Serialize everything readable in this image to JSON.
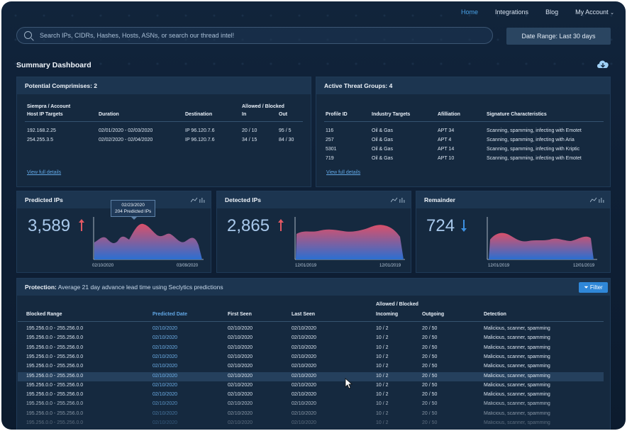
{
  "nav": {
    "home": "Home",
    "integrations": "Integrations",
    "blog": "Blog",
    "account": "My Account"
  },
  "search": {
    "placeholder": "Search IPs, CIDRs, Hashes, Hosts, ASNs, or search our thread intel!"
  },
  "date_range": "Date Range: Last 30 days",
  "page_title": "Summary Dashboard",
  "compromises": {
    "title": "Potential Comprimises: 2",
    "headers": {
      "host_l1": "Siempra / Account",
      "host_l2": "Host IP Targets",
      "duration": "Duration",
      "destination": "Destination",
      "ab": "Allowed / Blocked",
      "in": "In",
      "out": "Out"
    },
    "rows": [
      {
        "host": "192.168.2.25",
        "duration": "02/01/2020 - 02/03/2020",
        "dest": "IP 96.120.7.6",
        "in": "20 / 10",
        "out": "95 / 5"
      },
      {
        "host": "254.255.3.5",
        "duration": "02/02/2020 - 02/04/2020",
        "dest": "IP 96.120.7.6",
        "in": "34 / 15",
        "out": "84 / 30"
      }
    ],
    "link": "View full details"
  },
  "threats": {
    "title": "Active Threat Groups: 4",
    "headers": {
      "profile": "Profile ID",
      "industry": "Industry Targets",
      "affiliation": "Afilliation",
      "signature": "Signature Characteristics"
    },
    "rows": [
      {
        "id": "116",
        "industry": "Oil & Gas",
        "aff": "APT 34",
        "sig": "Scanning, spamming, infecting with Emotet"
      },
      {
        "id": "257",
        "industry": "Oil & Gas",
        "aff": "APT 4",
        "sig": "Scanning, spamming, infecting with Aria"
      },
      {
        "id": "5301",
        "industry": "Oil & Gas",
        "aff": "APT 14",
        "sig": "Scanning, spamming, infecting with Kriptic"
      },
      {
        "id": "719",
        "industry": "Oil & Gas",
        "aff": "APT 10",
        "sig": "Scanning, spamming, infecting with Emotet"
      }
    ],
    "link": "View full details"
  },
  "predicted": {
    "title": "Predicted IPs",
    "value": "3,589",
    "tooltip_date": "02/23/2020",
    "tooltip_text": "204 Predicted IPs",
    "x_start": "02/10/2020",
    "x_end": "03/09/2020"
  },
  "detected": {
    "title": "Detected IPs",
    "value": "2,865",
    "x_start": "12/01/2019",
    "x_end": "12/01/2019"
  },
  "remainder": {
    "title": "Remainder",
    "value": "724",
    "x_start": "12/01/2019",
    "x_end": "12/01/2019"
  },
  "protection": {
    "label": "Protection:",
    "desc": "Average 21 day advance lead time using Seclytics predictions",
    "filter": "Filter",
    "headers": {
      "range": "Blocked Range",
      "pred": "Predicted Date",
      "first": "First Seen",
      "last": "Last Seen",
      "ab": "Allowed  /  Blocked",
      "incoming": "Incoming",
      "outgoing": "Outgoing",
      "detection": "Detection"
    },
    "rows": [
      {
        "range": "195.256.0.0 - 255.256.0.0",
        "pred": "02/10/2020",
        "first": "02/10/2020",
        "last": "02/10/2020",
        "in": "10 / 2",
        "out": "20 / 50",
        "det": "Malicious, scanner, spamming"
      },
      {
        "range": "195.256.0.0 - 255.256.0.0",
        "pred": "02/10/2020",
        "first": "02/10/2020",
        "last": "02/10/2020",
        "in": "10 / 2",
        "out": "20 / 50",
        "det": "Malicious, scanner, spamming"
      },
      {
        "range": "195.256.0.0 - 255.256.0.0",
        "pred": "02/10/2020",
        "first": "02/10/2020",
        "last": "02/10/2020",
        "in": "10 / 2",
        "out": "20 / 50",
        "det": "Malicious, scanner, spamming"
      },
      {
        "range": "195.256.0.0 - 255.256.0.0",
        "pred": "02/10/2020",
        "first": "02/10/2020",
        "last": "02/10/2020",
        "in": "10 / 2",
        "out": "20 / 50",
        "det": "Malicious, scanner, spamming"
      },
      {
        "range": "195.256.0.0 - 255.256.0.0",
        "pred": "02/10/2020",
        "first": "02/10/2020",
        "last": "02/10/2020",
        "in": "10 / 2",
        "out": "20 / 50",
        "det": "Malicious, scanner, spamming"
      },
      {
        "range": "195.256.0.0 - 255.256.0.0",
        "pred": "02/10/2020",
        "first": "02/10/2020",
        "last": "02/10/2020",
        "in": "10 / 2",
        "out": "20 / 50",
        "det": "Malicious, scanner, spamming"
      },
      {
        "range": "195.256.0.0 - 255.256.0.0",
        "pred": "02/10/2020",
        "first": "02/10/2020",
        "last": "02/10/2020",
        "in": "10 / 2",
        "out": "20 / 50",
        "det": "Malicious, scanner, spamming"
      },
      {
        "range": "195.256.0.0 - 255.256.0.0",
        "pred": "02/10/2020",
        "first": "02/10/2020",
        "last": "02/10/2020",
        "in": "10 / 2",
        "out": "20 / 50",
        "det": "Malicious, scanner, spamming"
      },
      {
        "range": "195.256.0.0 - 255.256.0.0",
        "pred": "02/10/2020",
        "first": "02/10/2020",
        "last": "02/10/2020",
        "in": "10 / 2",
        "out": "20 / 50",
        "det": "Malicious, scanner, spamming"
      },
      {
        "range": "195.256.0.0 - 255.256.0.0",
        "pred": "02/10/2020",
        "first": "02/10/2020",
        "last": "02/10/2020",
        "in": "10 / 2",
        "out": "20 / 50",
        "det": "Malicious, scanner, spamming"
      },
      {
        "range": "195.256.0.0 - 255.256.0.0",
        "pred": "02/10/2020",
        "first": "02/10/2020",
        "last": "02/10/2020",
        "in": "10 / 2",
        "out": "20 / 50",
        "det": "Malicious, scanner, spamming"
      }
    ]
  },
  "colors": {
    "accent": "#4aa3e8",
    "up": "#e25863",
    "down": "#3c8fe0",
    "area_top": "#d9506a",
    "area_bottom": "#2b6fd1"
  },
  "icons": {
    "search": "search-icon",
    "cloud": "cloud-download-icon",
    "chevron": "chevron-down-icon",
    "line": "line-chart-icon",
    "bar": "bar-chart-icon",
    "filter": "filter-icon",
    "cursor": "mouse-cursor-icon"
  }
}
